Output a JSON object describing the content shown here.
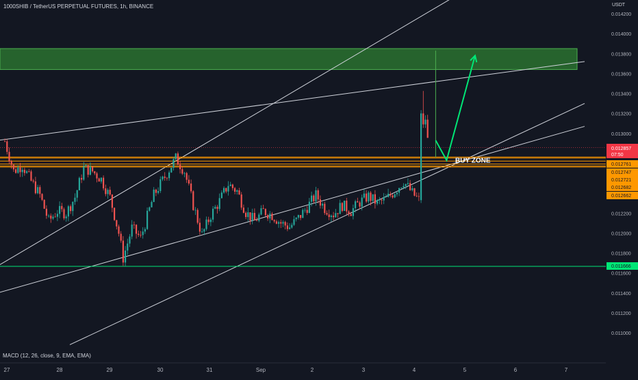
{
  "chart_title": "1000SHIB / TetherUS PERPETUAL FUTURES, 1h, BINANCE",
  "currency": "USDT",
  "macd_label": "MACD (12, 26, close, 9, EMA, EMA)",
  "buy_zone_label": "BUY ZONE",
  "colors": {
    "background": "#131722",
    "up_candle": "#26a69a",
    "down_candle": "#ef5350",
    "zone_fill": "#2e7d32",
    "zone_border": "#4caf50",
    "support_line": "#00e676",
    "orange_level": "#ff9800",
    "trend_line": "#d1d4dc",
    "current_price": "#f23645"
  },
  "chart_data": {
    "type": "candlestick",
    "x_tick_labels": [
      "27",
      "28",
      "29",
      "30",
      "31",
      "Sep",
      "2",
      "3",
      "4",
      "5",
      "6",
      "7"
    ],
    "y_tick_labels": [
      "0.014200",
      "0.014000",
      "0.013800",
      "0.013600",
      "0.013400",
      "0.013200",
      "0.013000",
      "0.012200",
      "0.012000",
      "0.011800",
      "0.011600",
      "0.011400",
      "0.011200",
      "0.011000"
    ],
    "ylim": [
      0.0108,
      0.0143
    ],
    "resistance_zone": {
      "low": 0.01364,
      "high": 0.01385
    },
    "support_level": {
      "value": 0.011666,
      "label": "0.011666"
    },
    "current_price": {
      "value": 0.012857,
      "label": "0.012857",
      "countdown": "07:50"
    },
    "orange_levels": [
      {
        "value": 0.012761,
        "label": "0.012761"
      },
      {
        "value": 0.012747,
        "label": "0.012747"
      },
      {
        "value": 0.012721,
        "label": "0.012721"
      },
      {
        "value": 0.012682,
        "label": "0.012682"
      },
      {
        "value": 0.012662,
        "label": "0.012662"
      }
    ],
    "orange_band_lines": [
      0.012762,
      0.012752,
      0.012722,
      0.012692,
      0.012672,
      0.012662
    ],
    "ohlc_keypoints": [
      [
        0,
        0.01292
      ],
      [
        4,
        0.01262
      ],
      [
        8,
        0.01268
      ],
      [
        12,
        0.01252
      ],
      [
        16,
        0.01238
      ],
      [
        20,
        0.01212
      ],
      [
        24,
        0.01222
      ],
      [
        28,
        0.0122
      ],
      [
        32,
        0.01236
      ],
      [
        36,
        0.01265
      ],
      [
        40,
        0.01262
      ],
      [
        44,
        0.01254
      ],
      [
        48,
        0.01236
      ],
      [
        52,
        0.012
      ],
      [
        54,
        0.01175
      ],
      [
        58,
        0.01205
      ],
      [
        62,
        0.01195
      ],
      [
        68,
        0.01238
      ],
      [
        74,
        0.0126
      ],
      [
        78,
        0.01275
      ],
      [
        82,
        0.01262
      ],
      [
        86,
        0.01228
      ],
      [
        90,
        0.01198
      ],
      [
        94,
        0.01218
      ],
      [
        98,
        0.01232
      ],
      [
        102,
        0.01249
      ],
      [
        106,
        0.01242
      ],
      [
        110,
        0.01221
      ],
      [
        114,
        0.01212
      ],
      [
        118,
        0.01222
      ],
      [
        122,
        0.01218
      ],
      [
        126,
        0.0121
      ],
      [
        130,
        0.01206
      ],
      [
        134,
        0.01215
      ],
      [
        138,
        0.01226
      ],
      [
        142,
        0.01238
      ],
      [
        146,
        0.01225
      ],
      [
        150,
        0.01219
      ],
      [
        154,
        0.01228
      ],
      [
        158,
        0.01222
      ],
      [
        162,
        0.01231
      ],
      [
        166,
        0.01237
      ],
      [
        170,
        0.0123
      ],
      [
        174,
        0.01234
      ],
      [
        178,
        0.01242
      ],
      [
        182,
        0.01252
      ],
      [
        186,
        0.0124
      ],
      [
        189,
        0.01233
      ],
      [
        190,
        0.0132
      ],
      [
        192,
        0.01315
      ],
      [
        193,
        0.01293
      ]
    ],
    "trend_lines": [
      {
        "from": [
          -6,
          0.01292
        ],
        "to": [
          265,
          0.01372
        ]
      },
      {
        "from": [
          -6,
          0.01163
        ],
        "to": [
          265,
          0.01514
        ]
      },
      {
        "from": [
          -6,
          0.01138
        ],
        "to": [
          265,
          0.01307
        ]
      },
      {
        "from": [
          30,
          0.01088
        ],
        "to": [
          265,
          0.0133
        ]
      }
    ],
    "vertical_spike": {
      "bar": 197,
      "from": 0.01276,
      "to": 0.01383
    },
    "arrow_path": [
      [
        197,
        0.01293
      ],
      [
        202,
        0.01273
      ],
      [
        215,
        0.01378
      ]
    ],
    "xlabel": "",
    "ylabel": ""
  }
}
